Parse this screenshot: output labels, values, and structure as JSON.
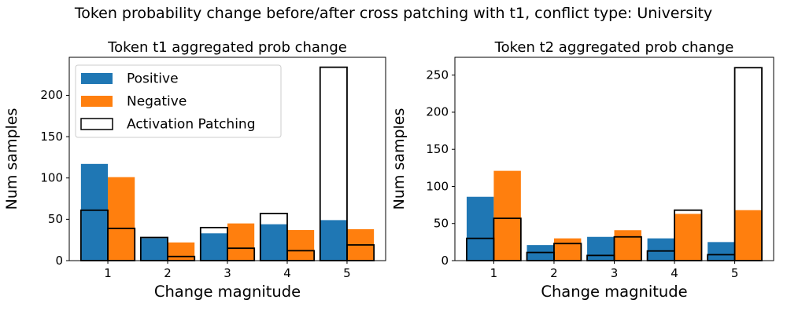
{
  "figure": {
    "title": "Token probability change before/after cross patching with t1, conflict type: University"
  },
  "colors": {
    "positive": "#1f77b4",
    "negative": "#ff7f0e",
    "patch_outline": "#000000",
    "axis": "#000000",
    "legend_border": "#cccccc"
  },
  "legend": {
    "items": [
      {
        "label": "Positive",
        "swatch": "positive-fill"
      },
      {
        "label": "Negative",
        "swatch": "negative-fill"
      },
      {
        "label": "Activation Patching",
        "swatch": "outline"
      }
    ]
  },
  "chart_data": [
    {
      "type": "bar",
      "title": "Token t1 aggregated prob change",
      "xlabel": "Change magnitude",
      "ylabel": "Num samples",
      "categories": [
        "1",
        "2",
        "3",
        "4",
        "5"
      ],
      "yticks": [
        0,
        50,
        100,
        150,
        200
      ],
      "ylim": [
        0,
        246
      ],
      "grid": false,
      "legend": true,
      "legend_position": "upper left",
      "series": [
        {
          "name": "Positive",
          "style": "fill",
          "color": "#1f77b4",
          "offset": "left",
          "values": [
            117,
            27,
            33,
            44,
            49
          ]
        },
        {
          "name": "Negative",
          "style": "fill",
          "color": "#ff7f0e",
          "offset": "right",
          "values": [
            101,
            22,
            45,
            37,
            38
          ]
        },
        {
          "name": "Activation Patching positive side",
          "style": "outline",
          "color": "#000000",
          "offset": "left",
          "values": [
            61,
            28,
            40,
            57,
            234
          ]
        },
        {
          "name": "Activation Patching negative side",
          "style": "outline",
          "color": "#000000",
          "offset": "right",
          "values": [
            39,
            5,
            15,
            12,
            19
          ]
        }
      ]
    },
    {
      "type": "bar",
      "title": "Token t2 aggregated prob change",
      "xlabel": "Change magnitude",
      "ylabel": "Num samples",
      "categories": [
        "1",
        "2",
        "3",
        "4",
        "5"
      ],
      "yticks": [
        0,
        50,
        100,
        150,
        200,
        250
      ],
      "ylim": [
        0,
        274
      ],
      "grid": false,
      "legend": false,
      "series": [
        {
          "name": "Positive",
          "style": "fill",
          "color": "#1f77b4",
          "offset": "left",
          "values": [
            86,
            21,
            32,
            30,
            25
          ]
        },
        {
          "name": "Negative",
          "style": "fill",
          "color": "#ff7f0e",
          "offset": "right",
          "values": [
            121,
            30,
            41,
            63,
            68
          ]
        },
        {
          "name": "Activation Patching positive side",
          "style": "outline",
          "color": "#000000",
          "offset": "left",
          "values": [
            30,
            11,
            7,
            13,
            8
          ]
        },
        {
          "name": "Activation Patching negative side",
          "style": "outline",
          "color": "#000000",
          "offset": "right",
          "values": [
            57,
            23,
            32,
            68,
            260
          ]
        }
      ]
    }
  ]
}
